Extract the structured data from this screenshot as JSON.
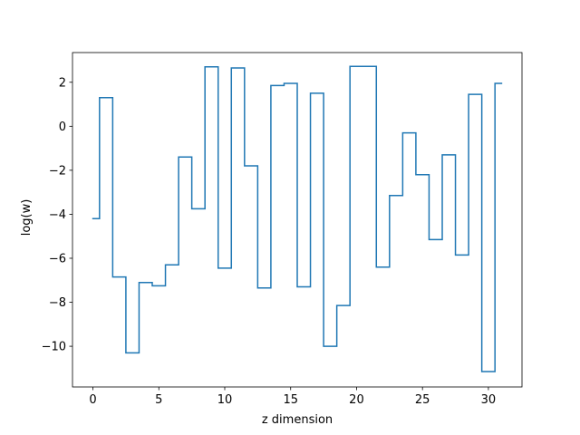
{
  "chart_data": {
    "type": "line",
    "drawstyle": "steps-mid",
    "xlabel": "z dimension",
    "ylabel": "log(w)",
    "xlim": [
      -1.55,
      32.55
    ],
    "ylim": [
      -11.85,
      3.35
    ],
    "xticks": [
      0,
      5,
      10,
      15,
      20,
      25,
      30
    ],
    "yticks": [
      -10,
      -8,
      -6,
      -4,
      -2,
      0,
      2
    ],
    "line_color": "#1f77b4",
    "grid": false,
    "series": [
      {
        "x": [
          0,
          1,
          2,
          3,
          4,
          5,
          6,
          7,
          8,
          9,
          10,
          11,
          12,
          13,
          14,
          15,
          16,
          17,
          18,
          19,
          20,
          21,
          22,
          23,
          24,
          25,
          26,
          27,
          28,
          29,
          30,
          31
        ],
        "values": [
          -4.2,
          1.3,
          -6.85,
          -10.3,
          -7.1,
          -7.25,
          -6.3,
          -1.4,
          -3.75,
          2.7,
          -6.45,
          2.65,
          -1.8,
          -7.35,
          1.85,
          1.95,
          -7.3,
          1.5,
          -10.0,
          -8.15,
          2.72,
          2.72,
          -6.4,
          -3.15,
          -0.3,
          -2.2,
          -5.15,
          -1.3,
          -5.85,
          1.45,
          -11.15,
          1.95
        ]
      }
    ]
  }
}
